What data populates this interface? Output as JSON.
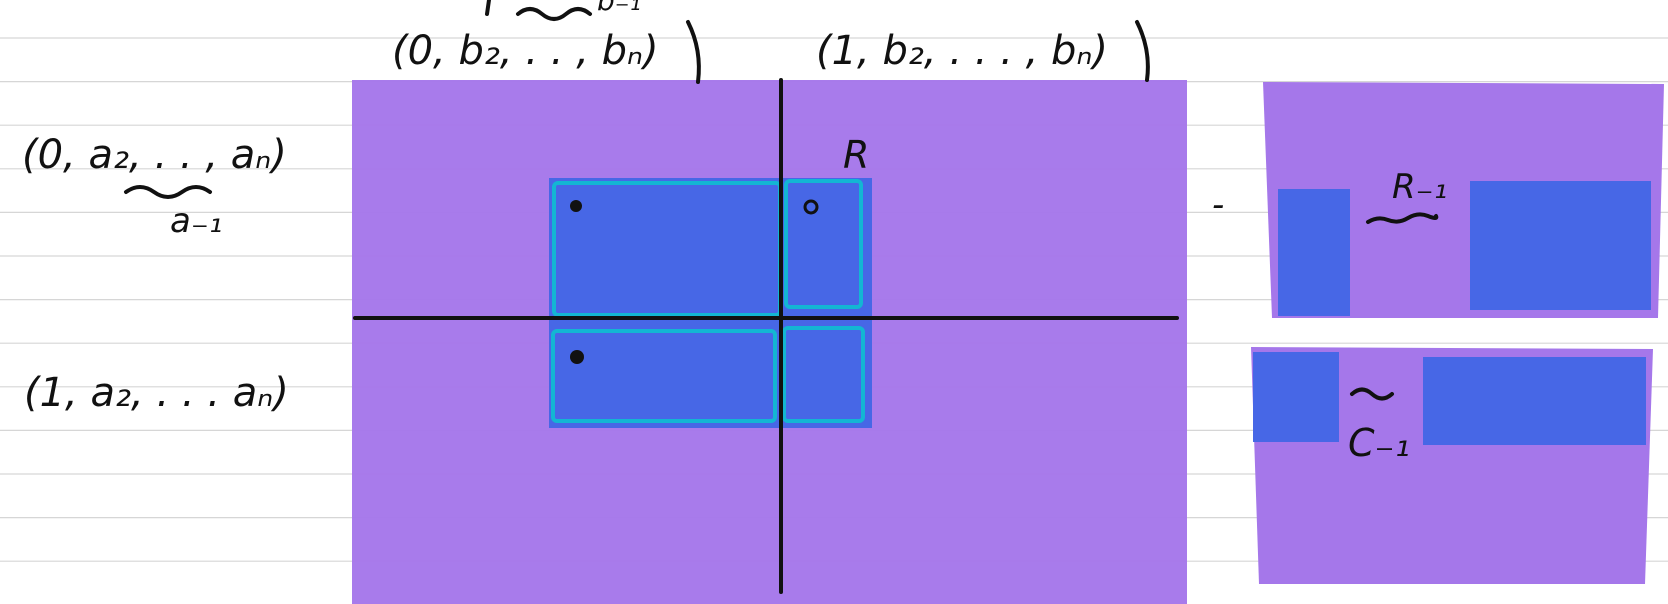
{
  "colors": {
    "paper": "#ffffff",
    "rule_line": "#d6d6d6",
    "purple": "#a577ea",
    "blue": "#4767e6",
    "cyan": "#13b6d3",
    "ink": "#111111"
  },
  "labels": {
    "col_header_left": "(0, b₂, . . , bₙ)",
    "col_header_right": "(1, b₂, . . . , bₙ)",
    "col_header_top_partial": "b₋₁",
    "row_header_top": "(0, a₂, . . , aₙ)",
    "row_header_top_sub": "a₋₁",
    "row_header_bottom": "(1, a₂, . . . aₙ)",
    "submatrix_R": "R",
    "minus_sign": "-",
    "panel1_label": "R₋₁",
    "panel2_label": "C₋₁"
  },
  "icons": {
    "wave": "tilde-squiggle-icon",
    "dot": "filled-dot-icon"
  }
}
